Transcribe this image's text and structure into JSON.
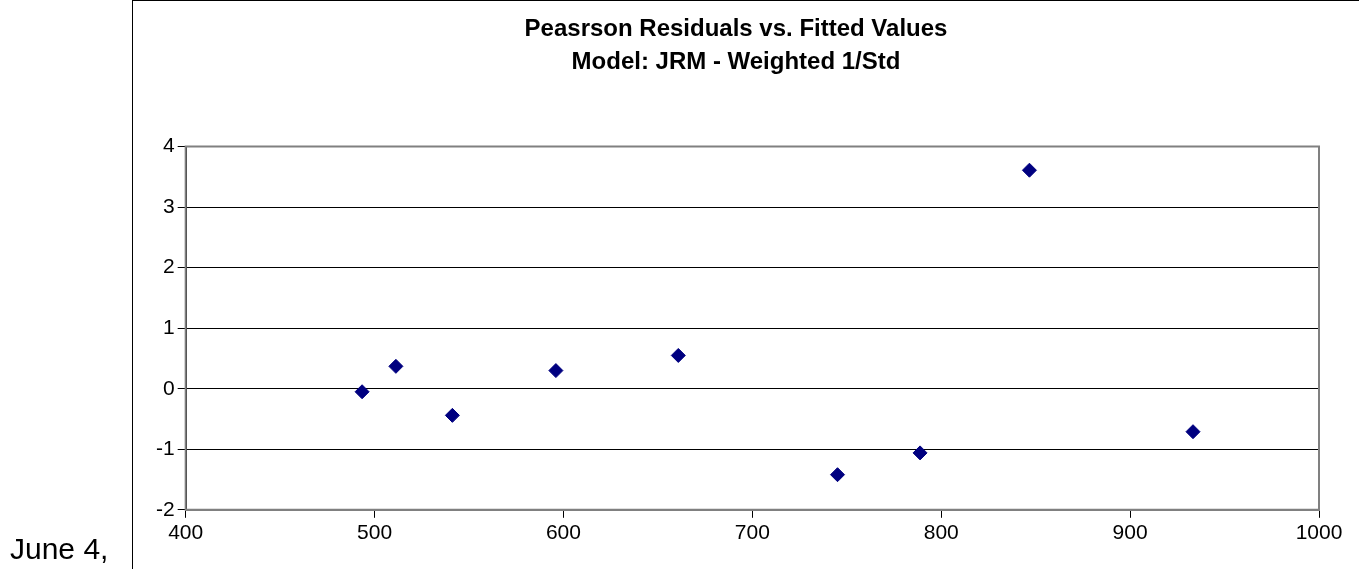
{
  "chart_data": {
    "type": "scatter",
    "title": "Peasrson Residuals vs. Fitted Values",
    "subtitle": "Model: JRM - Weighted 1/Std",
    "annotations": [
      "June 4,"
    ],
    "x": [
      493.4,
      511.3,
      541.2,
      596,
      660.8,
      745.1,
      788.8,
      846.7,
      933.3
    ],
    "series": [
      {
        "color": "#000080",
        "values": [
          -0.05,
          0.37,
          -0.44,
          0.3,
          0.55,
          -1.42,
          -1.06,
          3.61,
          -0.71
        ]
      }
    ],
    "xlim": [
      400,
      1000
    ],
    "xticks": [
      400,
      500,
      600,
      700,
      800,
      900,
      1000
    ],
    "ylim": [
      -2,
      4
    ],
    "yticks": [
      -2,
      -1,
      0,
      1,
      2,
      3,
      4
    ],
    "grid": "y",
    "legend": false,
    "marker": "diamond"
  }
}
